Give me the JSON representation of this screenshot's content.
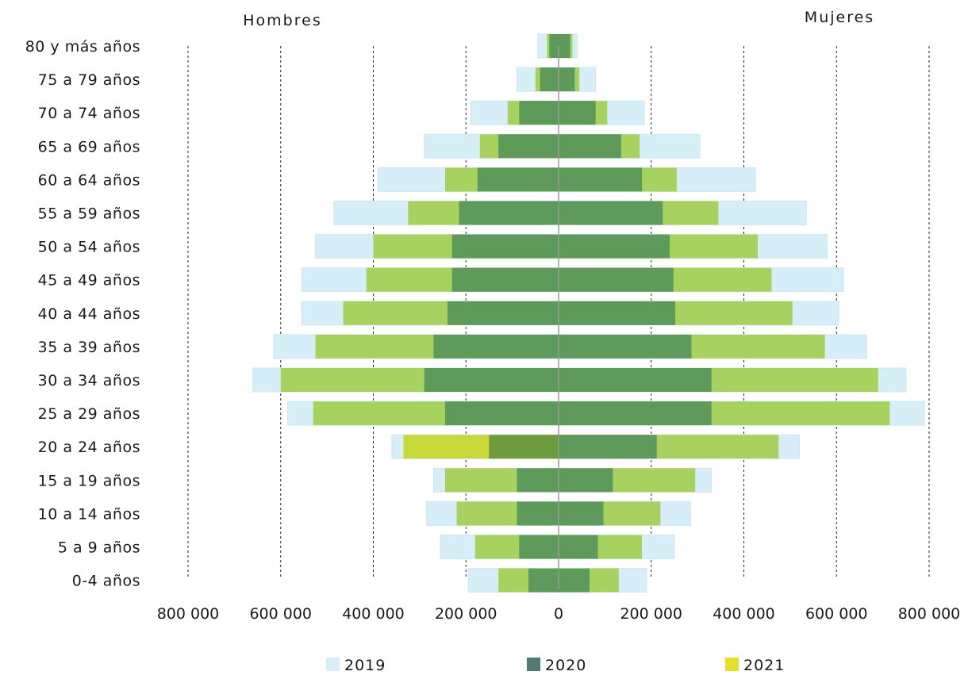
{
  "chart_data": {
    "type": "bar",
    "orientation": "horizontal-population-pyramid",
    "left_title": "Hombres",
    "right_title": "Mujeres",
    "categories": [
      "80 y más años",
      "75 a 79 años",
      "70 a 74 años",
      "65 a 69 años",
      "60 a 64 años",
      "55 a 59 años",
      "50 a 54 años",
      "45 a 49 años",
      "40 a 44 años",
      "35 a 39 años",
      "30 a 34 años",
      "25 a 29 años",
      "20 a 24 años",
      "15 a 19 años",
      "10 a 14 años",
      "5 a 9 años",
      "0-4 años"
    ],
    "x_ticks": [
      -800000,
      -600000,
      -400000,
      -200000,
      0,
      200000,
      400000,
      600000,
      800000
    ],
    "x_tick_labels": [
      "800 000",
      "600 000",
      "400 000",
      "200 000",
      "0",
      "200 000",
      "400 000",
      "600 000",
      "800 000"
    ],
    "xlim": [
      -800000,
      800000
    ],
    "legend": {
      "position": "bottom",
      "entries": [
        {
          "name": "2019",
          "color": "#d6eef8"
        },
        {
          "name": "2020",
          "color": "#4f7a6f"
        },
        {
          "name": "2021",
          "color": "#e3e02a"
        }
      ]
    },
    "colors": {
      "outer": "#d6eef8",
      "middle": "#a8d25f",
      "inner": "#5e9a5a",
      "highlight_middle": "#c8d83a",
      "highlight_inner": "#6f9a3e"
    },
    "series": [
      {
        "name": "2019",
        "side": "Hombres",
        "values": [
          45000,
          90000,
          190000,
          290000,
          390000,
          485000,
          525000,
          555000,
          555000,
          615000,
          660000,
          585000,
          360000,
          270000,
          285000,
          255000,
          195000
        ]
      },
      {
        "name": "2020",
        "side": "Hombres",
        "values": [
          25000,
          50000,
          110000,
          170000,
          245000,
          325000,
          400000,
          415000,
          465000,
          525000,
          600000,
          530000,
          335000,
          245000,
          220000,
          180000,
          130000
        ]
      },
      {
        "name": "2021",
        "side": "Hombres",
        "values": [
          20000,
          40000,
          85000,
          130000,
          175000,
          215000,
          230000,
          230000,
          240000,
          270000,
          290000,
          245000,
          150000,
          90000,
          90000,
          85000,
          65000
        ]
      },
      {
        "name": "2019",
        "side": "Mujeres",
        "values": [
          40000,
          80000,
          185000,
          305000,
          425000,
          535000,
          580000,
          615000,
          605000,
          665000,
          750000,
          790000,
          520000,
          330000,
          285000,
          250000,
          190000
        ]
      },
      {
        "name": "2020",
        "side": "Mujeres",
        "values": [
          30000,
          45000,
          105000,
          175000,
          255000,
          345000,
          430000,
          460000,
          505000,
          575000,
          690000,
          715000,
          475000,
          295000,
          220000,
          180000,
          130000
        ]
      },
      {
        "name": "2021",
        "side": "Mujeres",
        "values": [
          25000,
          35000,
          80000,
          135000,
          180000,
          225000,
          240000,
          248000,
          252000,
          287000,
          330000,
          330000,
          212000,
          117000,
          97000,
          85000,
          67000
        ]
      }
    ],
    "highlight_category": "20 a 24 años",
    "highlight_side": "Hombres"
  }
}
